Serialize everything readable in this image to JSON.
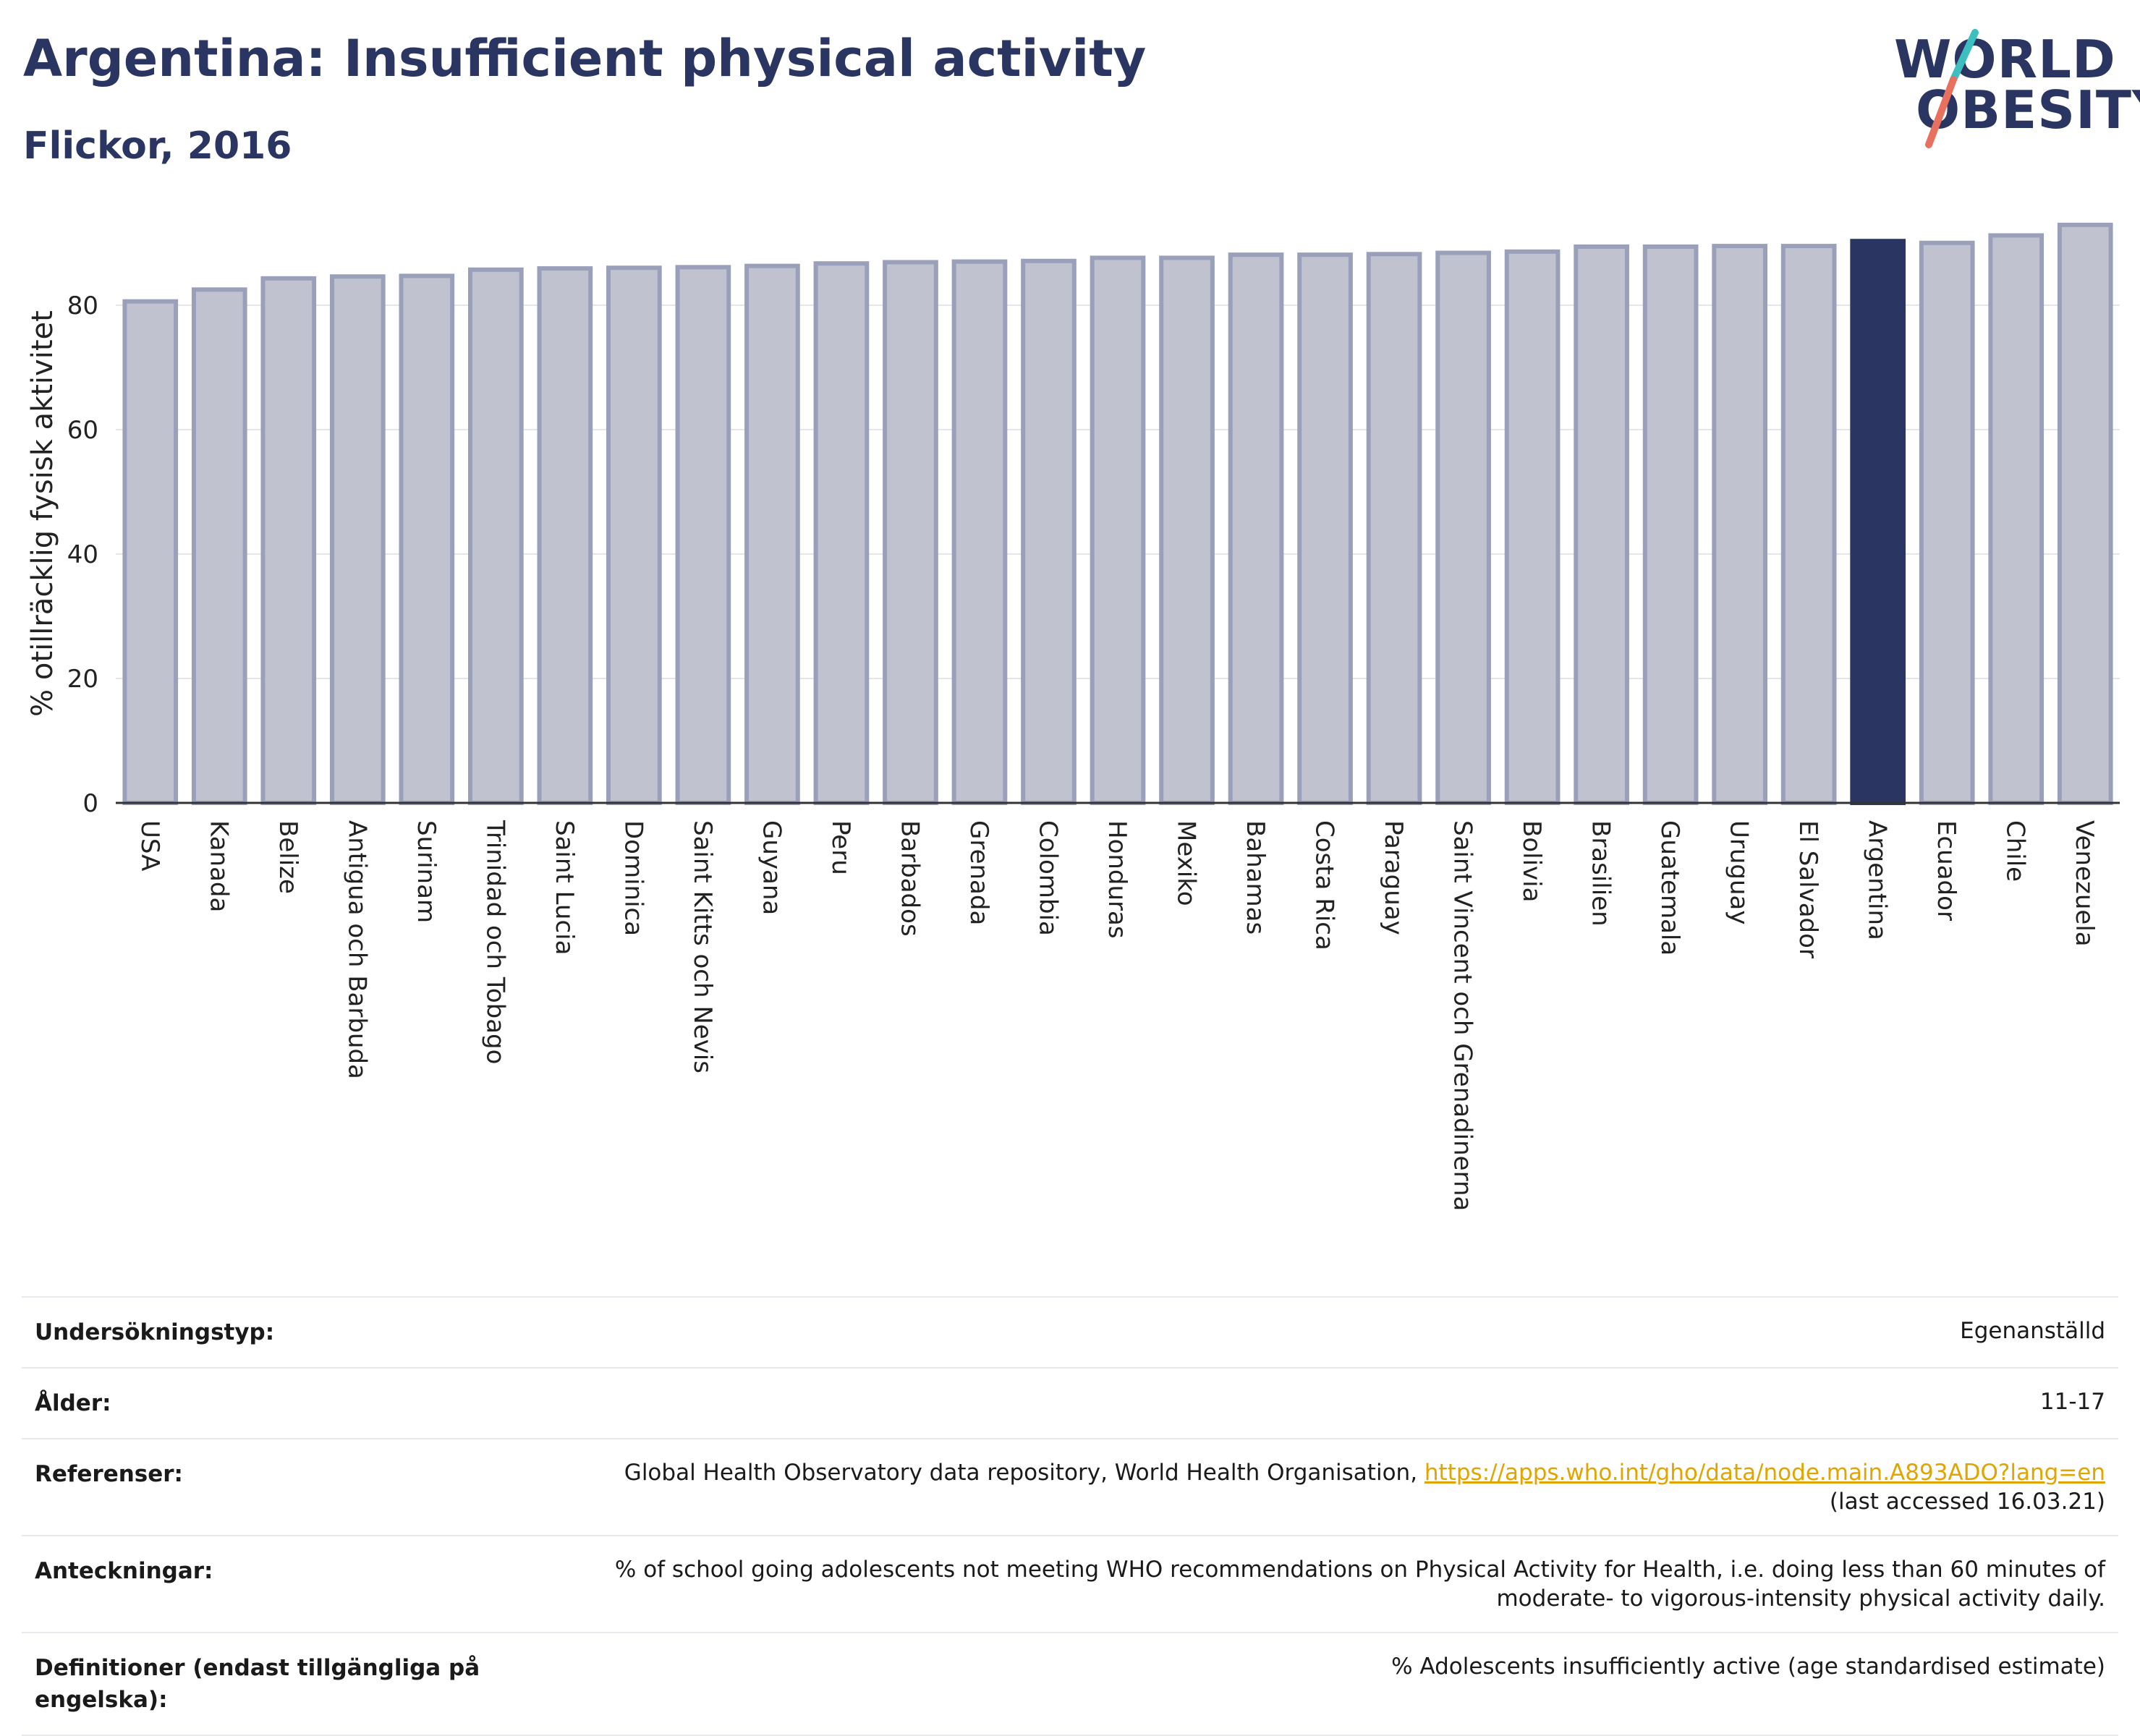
{
  "title": "Argentina: Insufficient physical activity",
  "subtitle": "Flickor, 2016",
  "logo": {
    "line1": "WORLD",
    "line2": "OBESITY"
  },
  "colors": {
    "bar": "#c0c3cf",
    "bar_border": "#9a9fba",
    "highlight": "#2b3562",
    "text_dark": "#2b3562",
    "link": "#e0a500",
    "slash_top": "#3dbfbf",
    "slash_bottom": "#e8705e"
  },
  "chart_data": {
    "type": "bar",
    "ylabel": "% otillräcklig fysisk aktivitet",
    "ylim": [
      0,
      93
    ],
    "yticks": [
      0,
      20,
      40,
      60,
      80
    ],
    "grid": true,
    "highlight": "Argentina",
    "categories": [
      "USA",
      "Kanada",
      "Belize",
      "Antigua och Barbuda",
      "Surinam",
      "Trinidad och Tobago",
      "Saint Lucia",
      "Dominica",
      "Saint Kitts och Nevis",
      "Guyana",
      "Peru",
      "Barbados",
      "Grenada",
      "Colombia",
      "Honduras",
      "Mexiko",
      "Bahamas",
      "Costa Rica",
      "Paraguay",
      "Saint Vincent och Grenadinerna",
      "Bolivia",
      "Brasilien",
      "Guatemala",
      "Uruguay",
      "El Salvador",
      "Argentina",
      "Ecuador",
      "Chile",
      "Venezuela"
    ],
    "values": [
      80.6,
      82.5,
      84.3,
      84.6,
      84.7,
      85.7,
      85.9,
      86.0,
      86.1,
      86.3,
      86.7,
      86.9,
      87.0,
      87.1,
      87.6,
      87.6,
      88.1,
      88.1,
      88.2,
      88.4,
      88.6,
      89.4,
      89.4,
      89.5,
      89.5,
      90.3,
      90.0,
      91.2,
      92.9
    ]
  },
  "meta": [
    {
      "label": "Undersökningstyp:",
      "value": "Egenanställd"
    },
    {
      "label": "Ålder:",
      "value": "11-17"
    },
    {
      "label": "Referenser:",
      "value": "Global Health Observatory data repository, World Health Organisation,",
      "link": "https://apps.who.int/gho/data/node.main.A893ADO?lang=en",
      "value2": "(last accessed 16.03.21)"
    },
    {
      "label": "Anteckningar:",
      "value": "% of school going adolescents not meeting WHO recommendations on Physical Activity for Health, i.e. doing less than 60 minutes of",
      "value2": "moderate- to vigorous-intensity physical activity daily."
    },
    {
      "label": "Definitioner (endast tillgängliga på engelska):",
      "value": "% Adolescents insufficiently active (age standardised estimate)"
    }
  ]
}
